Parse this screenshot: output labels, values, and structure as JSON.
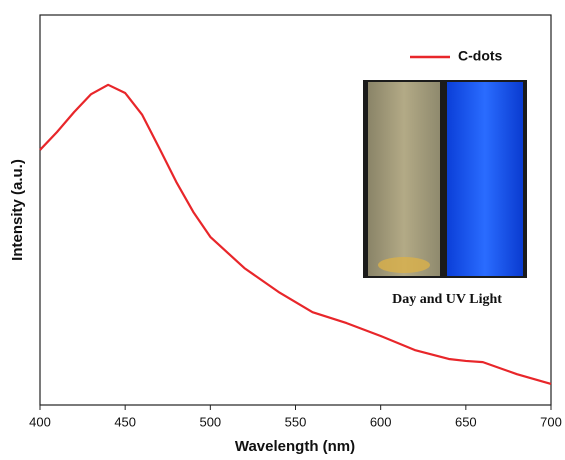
{
  "chart_data": {
    "type": "line",
    "x_label": "Wavelength (nm)",
    "y_label": "Intensity (a.u.)",
    "x": [
      400,
      410,
      420,
      430,
      440,
      450,
      460,
      470,
      480,
      490,
      500,
      520,
      540,
      560,
      580,
      600,
      620,
      640,
      650,
      660,
      680,
      700
    ],
    "series": [
      {
        "name": "C-dots",
        "color": "#e8262a",
        "values": [
          65.4,
          70.0,
          75.1,
          79.7,
          82.1,
          80.0,
          74.4,
          65.9,
          57.2,
          49.5,
          43.1,
          35.1,
          29.0,
          23.8,
          21.0,
          17.7,
          14.1,
          11.8,
          11.3,
          11.0,
          7.9,
          5.4
        ]
      }
    ],
    "xlim": [
      400,
      700
    ],
    "xticks": [
      400,
      450,
      500,
      550,
      600,
      650,
      700
    ],
    "ylim": [
      0,
      100
    ],
    "legend": "upper right",
    "inset_caption": "Day and UV Light"
  }
}
